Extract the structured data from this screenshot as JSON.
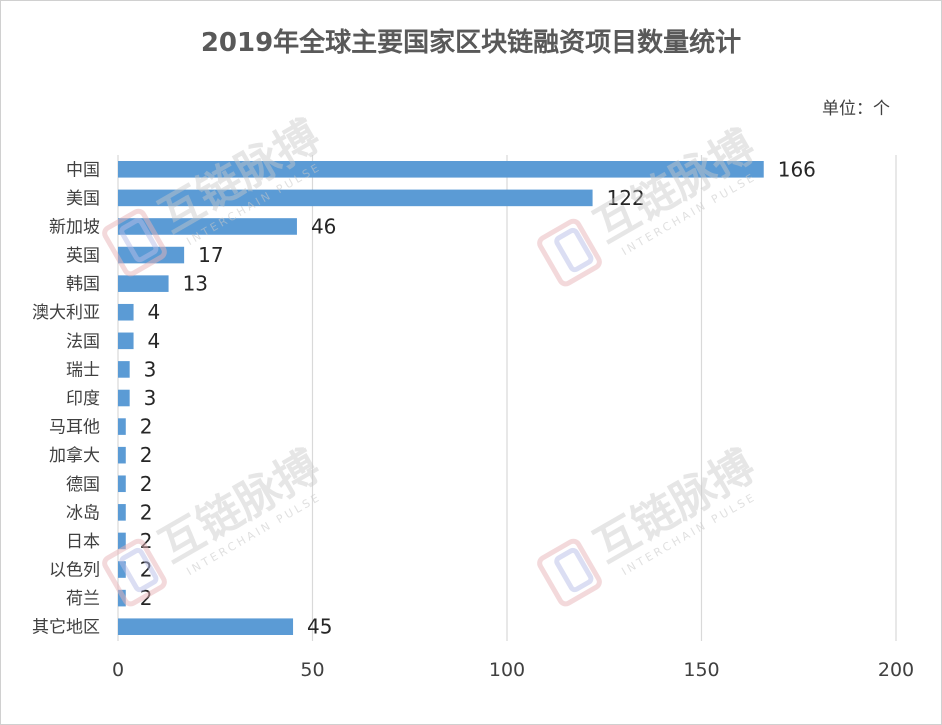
{
  "chart_data": {
    "type": "bar",
    "orientation": "horizontal",
    "title": "2019年全球主要国家区块链融资项目数量统计",
    "unit_label": "单位：个",
    "categories": [
      "中国",
      "美国",
      "新加坡",
      "英国",
      "韩国",
      "澳大利亚",
      "法国",
      "瑞士",
      "印度",
      "马耳他",
      "加拿大",
      "德国",
      "冰岛",
      "日本",
      "以色列",
      "荷兰",
      "其它地区"
    ],
    "values": [
      166,
      122,
      46,
      17,
      13,
      4,
      4,
      3,
      3,
      2,
      2,
      2,
      2,
      2,
      2,
      2,
      45
    ],
    "xlim": [
      0,
      200
    ],
    "xticks": [
      0,
      50,
      100,
      150,
      200
    ],
    "grid": true,
    "bar_color": "#5b9bd5"
  },
  "watermark": {
    "text": "互链脉搏",
    "subtext": "INTERCHAIN PULSE"
  }
}
